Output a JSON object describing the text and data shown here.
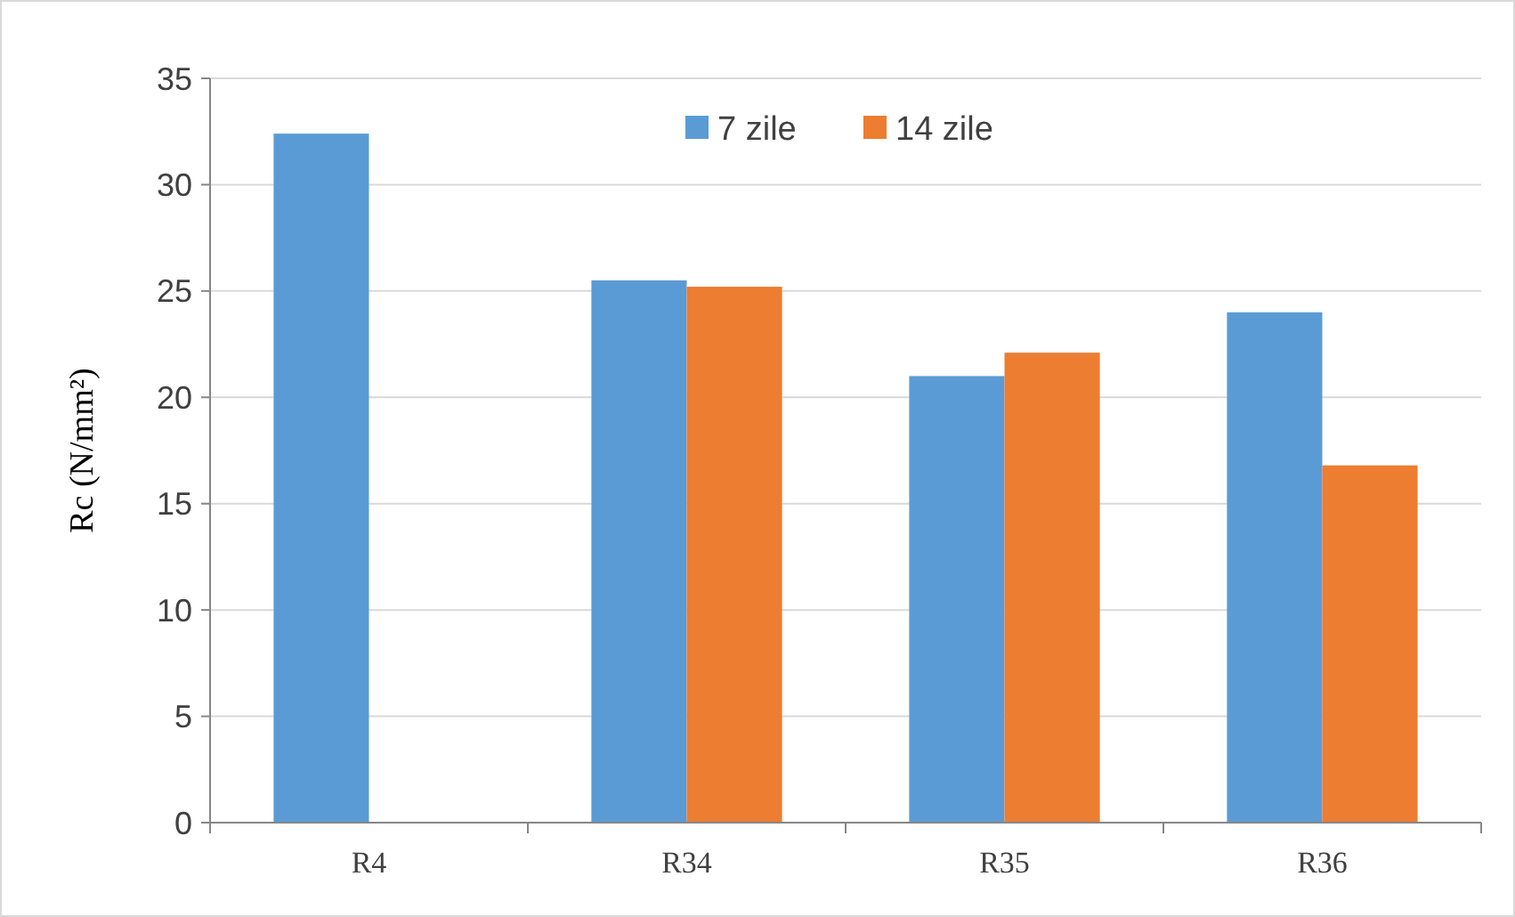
{
  "chart_data": {
    "type": "bar",
    "ylabel": "Rc (N/mm²)",
    "categories": [
      "R4",
      "R34",
      "R35",
      "R36"
    ],
    "series": [
      {
        "name": "7 zile",
        "color": "#5b9bd5",
        "values": [
          32.4,
          25.5,
          21.0,
          24.0
        ]
      },
      {
        "name": "14 zile",
        "color": "#ed7d31",
        "values": [
          null,
          25.2,
          22.1,
          16.8
        ]
      }
    ],
    "ylim": [
      0,
      35
    ],
    "yticks": [
      0,
      5,
      10,
      15,
      20,
      25,
      30,
      35
    ],
    "grid": "y",
    "legend": "top"
  }
}
